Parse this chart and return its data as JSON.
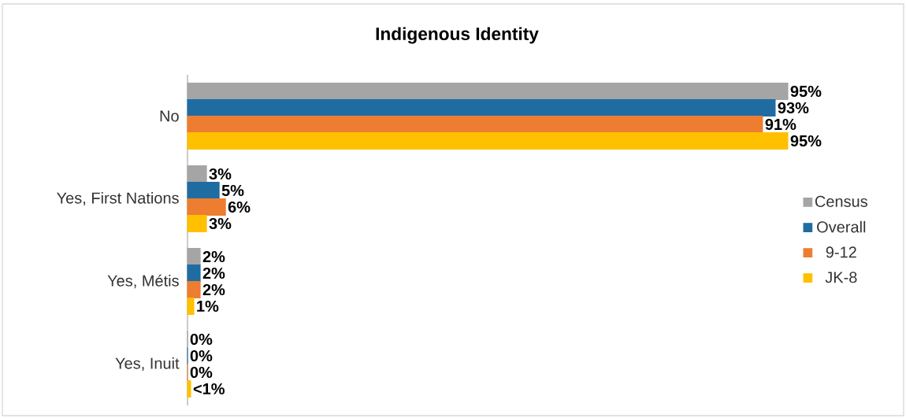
{
  "chart_data": {
    "type": "bar",
    "orientation": "horizontal",
    "title": "Indigenous Identity",
    "categories": [
      "No",
      "Yes, First Nations",
      "Yes, Métis",
      "Yes, Inuit"
    ],
    "series": [
      {
        "name": "Census",
        "color": "#a5a5a5",
        "values": [
          95,
          3,
          2,
          0
        ],
        "value_labels": [
          "95%",
          "3%",
          "2%",
          "0%"
        ]
      },
      {
        "name": "Overall",
        "color": "#1f6ca3",
        "values": [
          93,
          5,
          2,
          0
        ],
        "value_labels": [
          "93%",
          "5%",
          "2%",
          "0%"
        ]
      },
      {
        "name": "9-12",
        "color": "#ed7d31",
        "values": [
          91,
          6,
          2,
          0
        ],
        "value_labels": [
          "91%",
          "6%",
          "2%",
          "0%"
        ]
      },
      {
        "name": "JK-8",
        "color": "#ffc000",
        "values": [
          95,
          3,
          1,
          0.5
        ],
        "value_labels": [
          "95%",
          "3%",
          "1%",
          "<1%"
        ]
      }
    ],
    "legend": "right"
  }
}
